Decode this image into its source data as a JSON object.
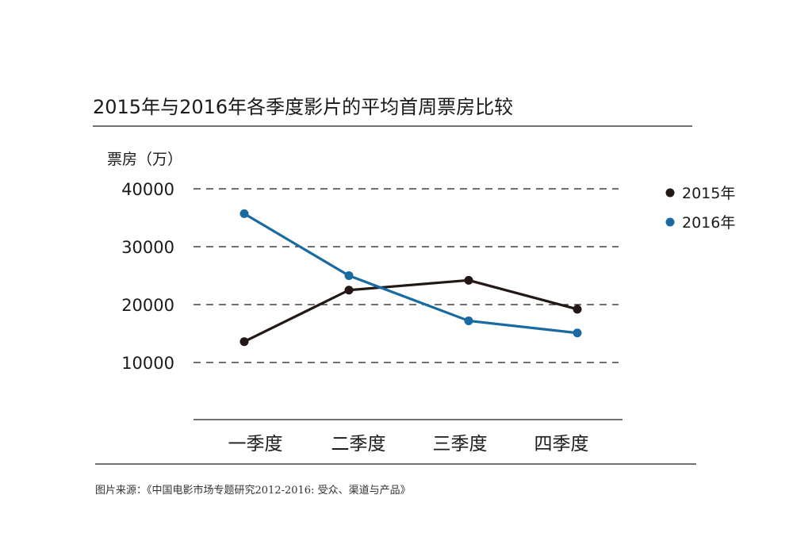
{
  "chart_data": {
    "type": "line",
    "title": "2015年与2016年各季度影片的平均首周票房比较",
    "ylabel": "票房（万）",
    "xlabel": "",
    "categories": [
      "一季度",
      "二季度",
      "三季度",
      "四季度"
    ],
    "ylim": [
      10000,
      40000
    ],
    "yticks": [
      "40000",
      "30000",
      "20000",
      "10000"
    ],
    "grid": "horizontal-dashed",
    "legend_position": "right",
    "series": [
      {
        "name": "2015年",
        "color": "#231815",
        "values": [
          13600,
          22500,
          24200,
          19200
        ]
      },
      {
        "name": "2016年",
        "color": "#1a6aa2",
        "values": [
          35700,
          25000,
          17200,
          15100
        ]
      }
    ]
  },
  "source_note": "图片来源：《中国电影市场专题研究2012-2016: 受众、渠道与产品》"
}
